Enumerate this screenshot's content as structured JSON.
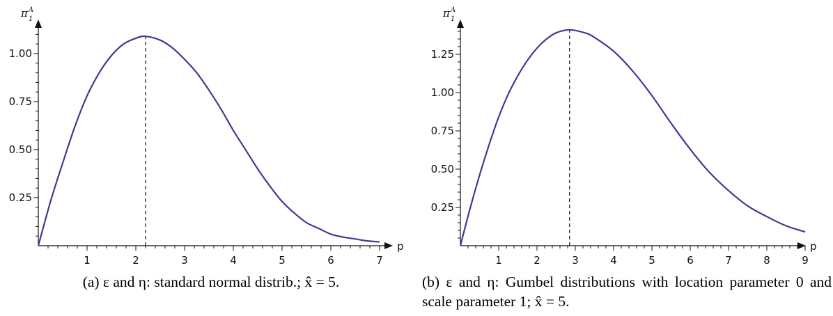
{
  "chart_data": [
    {
      "type": "line",
      "xlabel": "p",
      "ylabel": {
        "base": "π",
        "sub": "1",
        "sup": "A"
      },
      "xlim": [
        0,
        7
      ],
      "ylim": [
        0,
        1.1
      ],
      "xticks": [
        1,
        2,
        3,
        4,
        5,
        6,
        7
      ],
      "yticks": [
        0.25,
        0.5,
        0.75,
        1.0
      ],
      "ytick_labels": [
        "0.25",
        "0.50",
        "0.75",
        "1.00"
      ],
      "x": [
        0,
        0.25,
        0.5,
        0.75,
        1.0,
        1.25,
        1.5,
        1.75,
        2.0,
        2.2,
        2.5,
        2.75,
        3.0,
        3.25,
        3.5,
        3.75,
        4.0,
        4.25,
        4.5,
        4.75,
        5.0,
        5.25,
        5.5,
        5.75,
        6.0,
        6.25,
        6.5,
        6.75,
        7.0
      ],
      "y": [
        0.0,
        0.23,
        0.43,
        0.62,
        0.78,
        0.9,
        0.99,
        1.05,
        1.08,
        1.09,
        1.07,
        1.03,
        0.97,
        0.9,
        0.81,
        0.71,
        0.6,
        0.5,
        0.4,
        0.31,
        0.23,
        0.17,
        0.12,
        0.09,
        0.06,
        0.045,
        0.035,
        0.025,
        0.02
      ],
      "optimum": {
        "x": 2.2,
        "y": 1.09
      },
      "line_color": "#3c3c94",
      "caption": "(a) ε and η: standard normal distrib.; x̂ = 5."
    },
    {
      "type": "line",
      "xlabel": "p",
      "ylabel": {
        "base": "π",
        "sub": "1",
        "sup": "A"
      },
      "xlim": [
        0,
        9
      ],
      "ylim": [
        0,
        1.4
      ],
      "xticks": [
        1,
        2,
        3,
        4,
        5,
        6,
        7,
        8,
        9
      ],
      "yticks": [
        0.25,
        0.5,
        0.75,
        1.0,
        1.25
      ],
      "ytick_labels": [
        "0.25",
        "0.50",
        "0.75",
        "1.00",
        "1.25"
      ],
      "x": [
        0,
        0.25,
        0.5,
        0.75,
        1.0,
        1.25,
        1.5,
        1.75,
        2.0,
        2.25,
        2.5,
        2.85,
        3.25,
        3.5,
        4.0,
        4.5,
        5.0,
        5.5,
        6.0,
        6.5,
        7.0,
        7.5,
        8.0,
        8.5,
        9.0
      ],
      "y": [
        0.0,
        0.24,
        0.46,
        0.66,
        0.84,
        0.99,
        1.11,
        1.21,
        1.29,
        1.35,
        1.39,
        1.41,
        1.39,
        1.36,
        1.27,
        1.14,
        0.98,
        0.8,
        0.63,
        0.48,
        0.36,
        0.26,
        0.19,
        0.13,
        0.09
      ],
      "optimum": {
        "x": 2.85,
        "y": 1.41
      },
      "line_color": "#3c3c94",
      "caption": "(b) ε and η: Gumbel distributions with location parameter 0 and scale parameter 1; x̂ = 5."
    }
  ]
}
